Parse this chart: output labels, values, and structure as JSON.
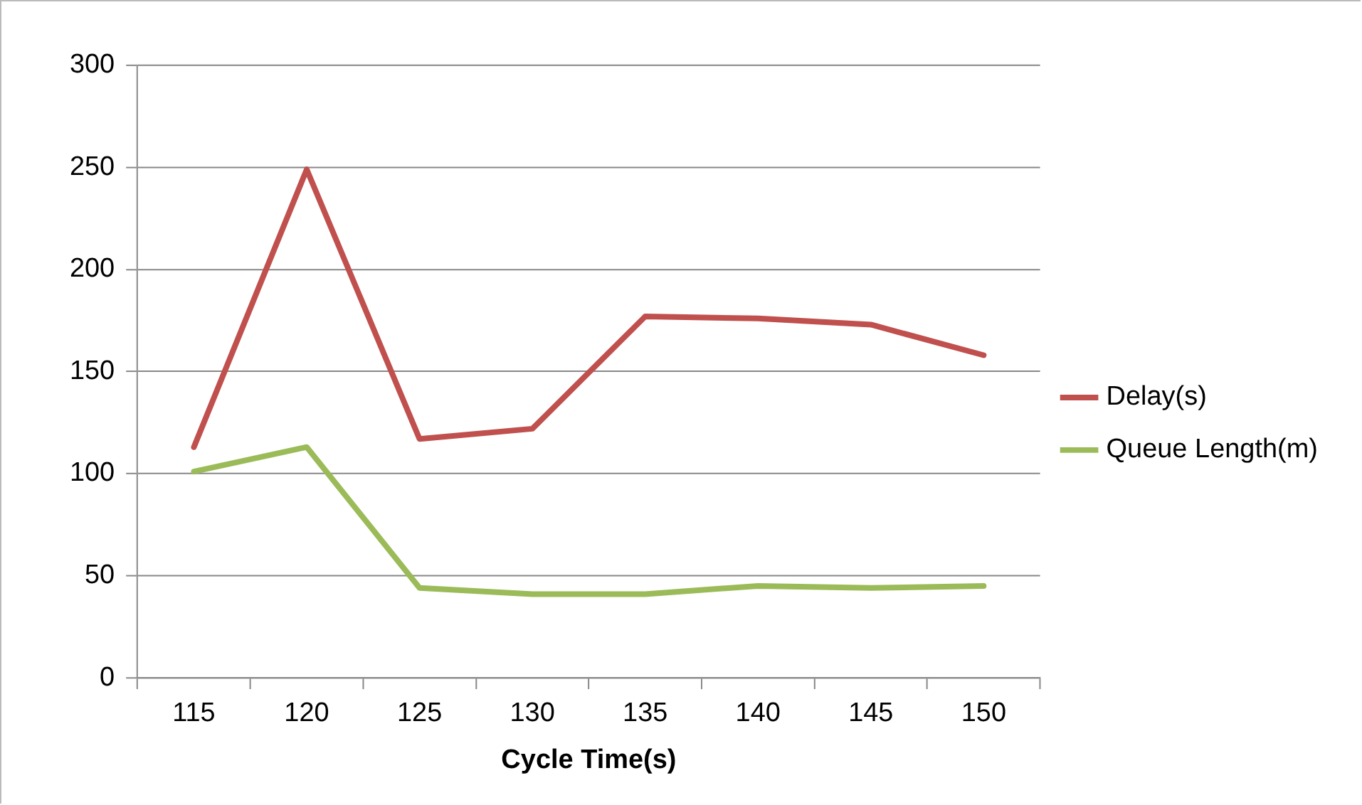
{
  "chart_data": {
    "type": "line",
    "xlabel": "Cycle Time(s)",
    "categories": [
      "115",
      "120",
      "125",
      "130",
      "135",
      "140",
      "145",
      "150"
    ],
    "series": [
      {
        "name": "Delay(s)",
        "color": "#c0504d",
        "values": [
          113,
          249,
          117,
          122,
          177,
          176,
          173,
          158
        ]
      },
      {
        "name": "Queue Length(m)",
        "color": "#9bbb59",
        "values": [
          101,
          113,
          44,
          41,
          41,
          45,
          44,
          45
        ]
      }
    ],
    "ylim": [
      0,
      300
    ],
    "yticks": [
      0,
      50,
      100,
      150,
      200,
      250,
      300
    ],
    "grid": "y",
    "legend": "right",
    "marker": "none",
    "line_style": "solid"
  }
}
